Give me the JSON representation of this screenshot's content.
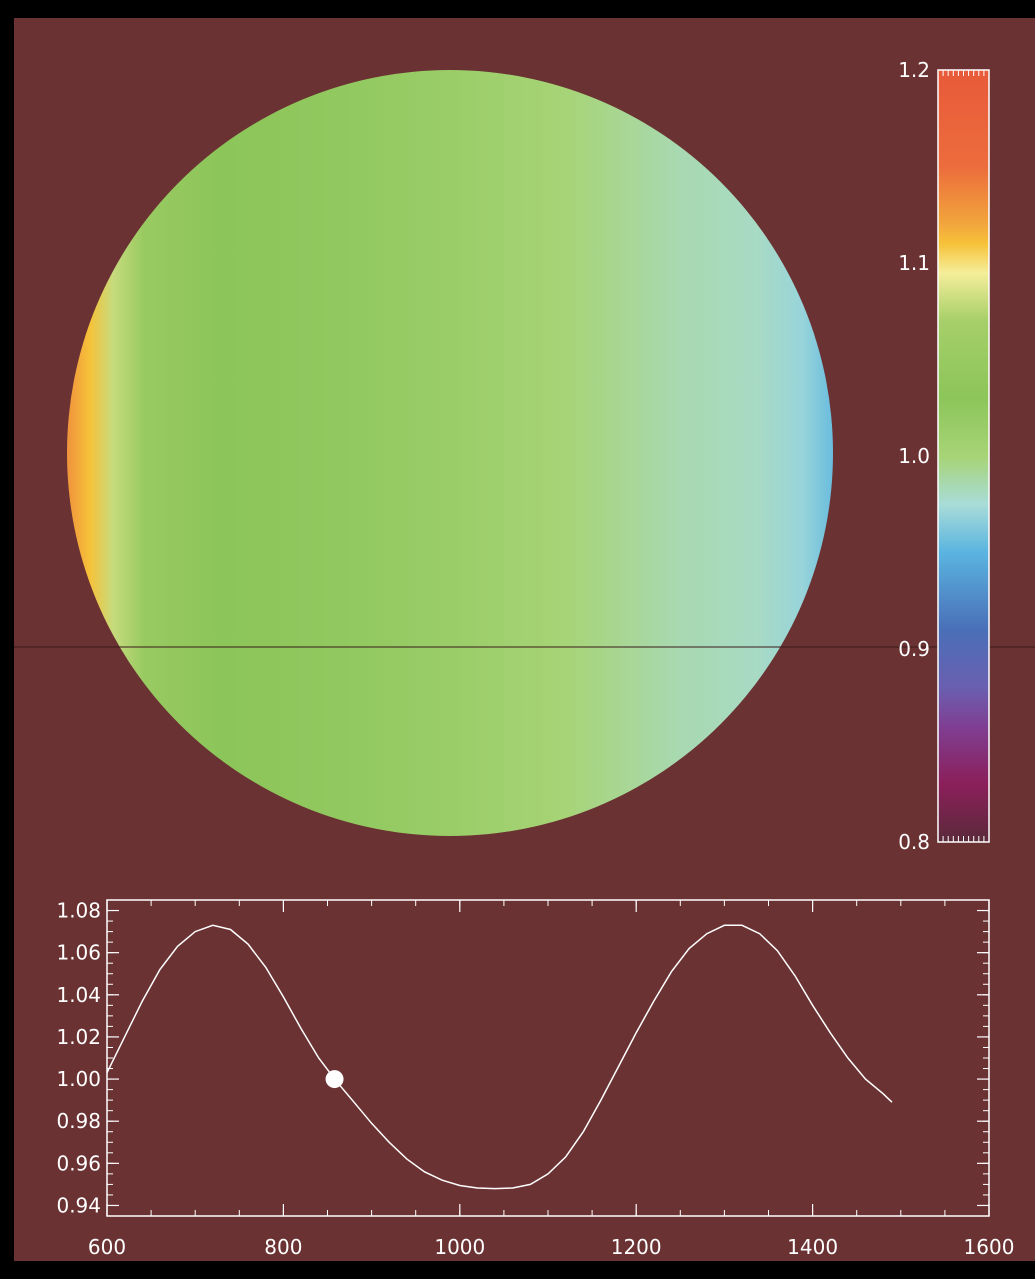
{
  "colors": {
    "background": "#6b3233",
    "outer_border": "#000000",
    "line": "#ffffff",
    "colorscale": [
      "#5a2a3a",
      "#8b1f5a",
      "#7f3f93",
      "#6a5fb0",
      "#4a6fb8",
      "#5ab4e0",
      "#a8dcd8",
      "#a7d476",
      "#8cc55a",
      "#a6cf6a",
      "#f5ee9a",
      "#f6c23a",
      "#f2a63c",
      "#ec6c3c",
      "#e85a3a"
    ]
  },
  "chart_data": [
    {
      "type": "heatmap",
      "title": "",
      "description_colors": "intensity disc",
      "colorbar": {
        "range": [
          0.8,
          1.2
        ],
        "tick_labels": [
          "0.8",
          "0.9",
          "1.0",
          "1.1",
          "1.2"
        ],
        "tick_values": [
          0.8,
          0.9,
          1.0,
          1.1,
          1.2
        ]
      },
      "disc_profile": {
        "x_fraction": [
          0.0,
          0.03,
          0.06,
          0.1,
          0.2,
          0.35,
          0.5,
          0.65,
          0.8,
          0.9,
          0.96,
          1.0
        ],
        "value": [
          1.13,
          1.11,
          1.08,
          1.05,
          1.03,
          1.025,
          1.015,
          1.0,
          0.985,
          0.98,
          0.97,
          0.955
        ]
      }
    },
    {
      "type": "line",
      "title": "",
      "xlabel": "",
      "ylabel": "",
      "xlim": [
        600,
        1600
      ],
      "ylim": [
        0.935,
        1.085
      ],
      "x_ticks": [
        600,
        800,
        1000,
        1200,
        1400,
        1600
      ],
      "x_tick_labels": [
        "600",
        "800",
        "1000",
        "1200",
        "1400",
        "1600"
      ],
      "y_ticks": [
        0.94,
        0.96,
        0.98,
        1.0,
        1.02,
        1.04,
        1.06,
        1.08
      ],
      "y_tick_labels": [
        "0.94",
        "0.96",
        "0.98",
        "1.00",
        "1.02",
        "1.04",
        "1.06",
        "1.08"
      ],
      "series": [
        {
          "x": [
            600,
            620,
            640,
            660,
            680,
            700,
            720,
            740,
            760,
            780,
            800,
            820,
            840,
            860,
            880,
            900,
            920,
            940,
            960,
            980,
            1000,
            1020,
            1040,
            1060,
            1080,
            1100,
            1120,
            1140,
            1160,
            1180,
            1200,
            1220,
            1240,
            1260,
            1280,
            1300,
            1320,
            1340,
            1360,
            1380,
            1400,
            1420,
            1440,
            1460,
            1480,
            1490
          ],
          "y": [
            1.003,
            1.02,
            1.037,
            1.052,
            1.063,
            1.07,
            1.073,
            1.071,
            1.064,
            1.053,
            1.039,
            1.024,
            1.01,
            0.999,
            0.989,
            0.979,
            0.97,
            0.962,
            0.956,
            0.952,
            0.9495,
            0.9483,
            0.948,
            0.9483,
            0.95,
            0.955,
            0.963,
            0.975,
            0.99,
            1.006,
            1.022,
            1.037,
            1.051,
            1.062,
            1.069,
            1.073,
            1.073,
            1.069,
            1.061,
            1.049,
            1.035,
            1.022,
            1.01,
            1.0,
            0.993,
            0.989
          ]
        }
      ],
      "marker": {
        "x": 858,
        "y": 1.0
      }
    }
  ]
}
